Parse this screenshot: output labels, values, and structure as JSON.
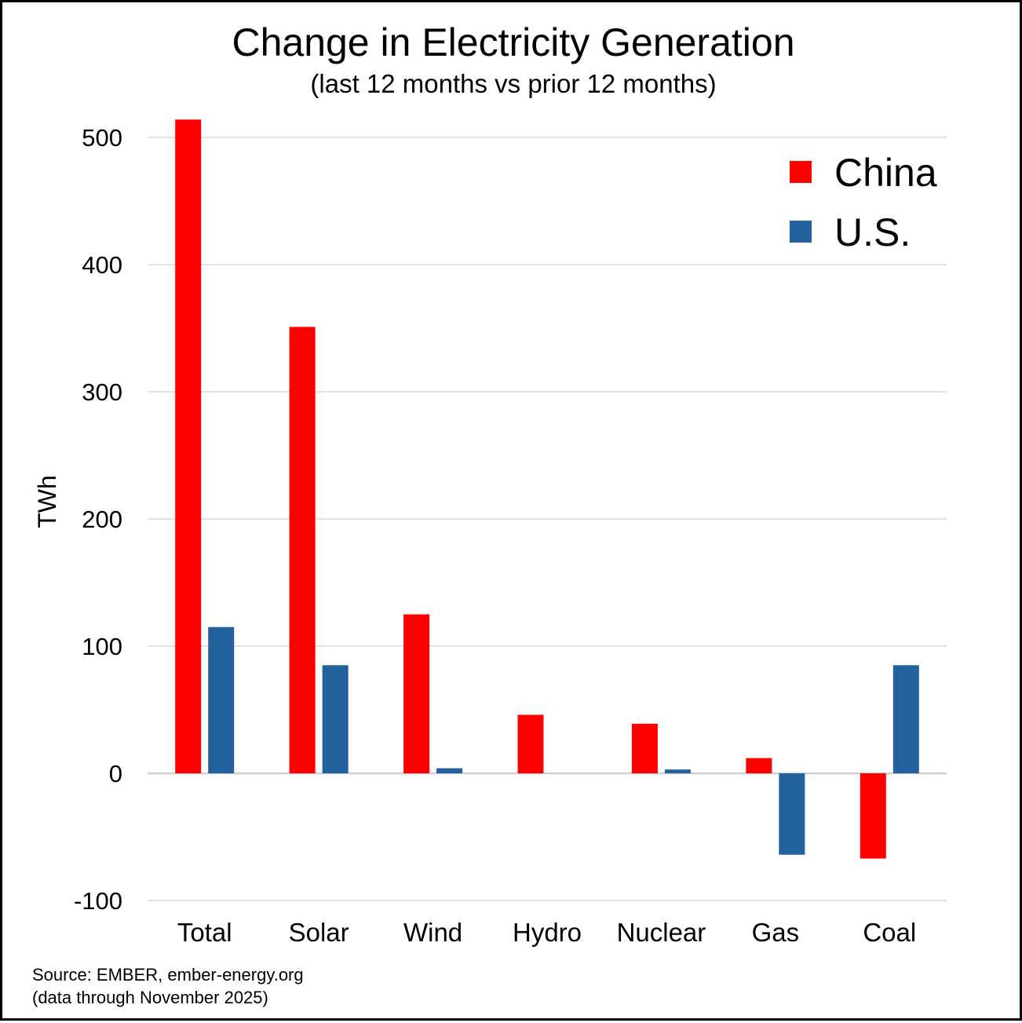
{
  "chart_data": {
    "type": "bar",
    "title": "Change in Electricity Generation",
    "subtitle": "(last 12 months vs prior 12 months)",
    "xlabel": "",
    "ylabel": "TWh",
    "ylim": [
      -100,
      500
    ],
    "yticks": [
      "-100",
      "0",
      "100",
      "200",
      "300",
      "400",
      "500"
    ],
    "grid": true,
    "legend_position": "top-right",
    "categories": [
      "Total",
      "Solar",
      "Wind",
      "Hydro",
      "Nuclear",
      "Gas",
      "Coal"
    ],
    "series": [
      {
        "name": "China",
        "color": "#ff0000",
        "values": [
          514,
          351,
          125,
          46,
          39,
          12,
          -67
        ]
      },
      {
        "name": "U.S.",
        "color": "#22609e",
        "values": [
          115,
          85,
          4,
          0,
          3,
          -64,
          85
        ]
      }
    ],
    "source": "Source: EMBER, ember-energy.org",
    "note": "(data through November 2025)"
  }
}
